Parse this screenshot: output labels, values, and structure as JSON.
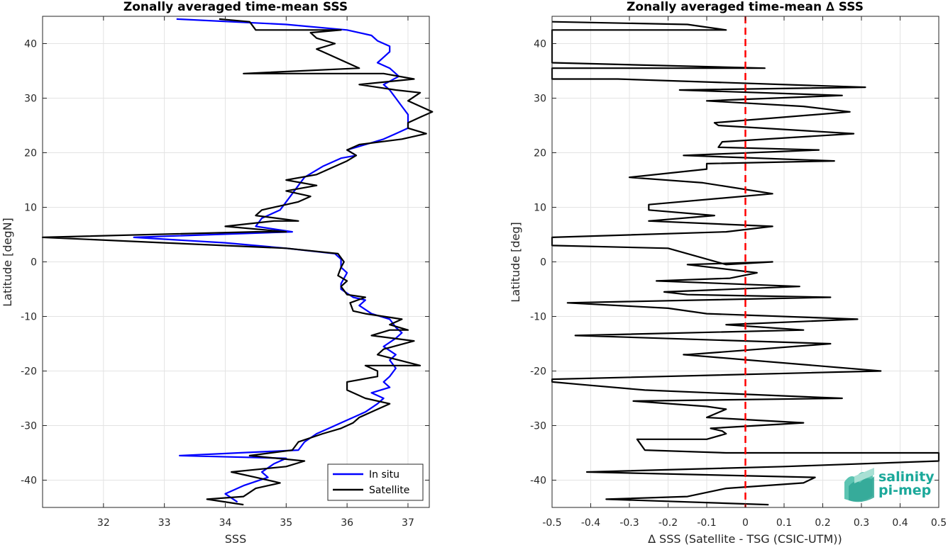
{
  "chart_data": [
    {
      "type": "line",
      "title": "Zonally averaged time-mean SSS",
      "xlabel": "SSS",
      "ylabel": "Latitude [degN]",
      "xlim": [
        31,
        37.35
      ],
      "ylim": [
        -45,
        45
      ],
      "xticks": [
        32,
        33,
        34,
        35,
        36,
        37
      ],
      "yticks": [
        -40,
        -30,
        -20,
        -10,
        0,
        10,
        20,
        30,
        40
      ],
      "grid": true,
      "legend": "bottom-right",
      "series": [
        {
          "name": "In situ",
          "color": "#0000ff",
          "points": [
            [
              34.2,
              -44
            ],
            [
              34.0,
              -42.5
            ],
            [
              34.3,
              -41
            ],
            [
              34.7,
              -39.5
            ],
            [
              34.6,
              -38.5
            ],
            [
              34.8,
              -37
            ],
            [
              35.0,
              -36
            ],
            [
              33.25,
              -35.5
            ],
            [
              35.2,
              -34.5
            ],
            [
              35.3,
              -33
            ],
            [
              35.5,
              -31.5
            ],
            [
              35.7,
              -30.5
            ],
            [
              35.9,
              -29.5
            ],
            [
              36.1,
              -28.5
            ],
            [
              36.3,
              -27.5
            ],
            [
              36.5,
              -26
            ],
            [
              36.6,
              -25
            ],
            [
              36.4,
              -24
            ],
            [
              36.7,
              -23
            ],
            [
              36.6,
              -22
            ],
            [
              36.7,
              -21
            ],
            [
              36.8,
              -19.5
            ],
            [
              36.7,
              -18
            ],
            [
              36.8,
              -17
            ],
            [
              36.6,
              -15.5
            ],
            [
              36.8,
              -14
            ],
            [
              36.9,
              -13
            ],
            [
              36.8,
              -12
            ],
            [
              36.7,
              -10.5
            ],
            [
              36.4,
              -9.5
            ],
            [
              36.2,
              -8
            ],
            [
              36.3,
              -7
            ],
            [
              36.1,
              -6.5
            ],
            [
              35.9,
              -5
            ],
            [
              35.9,
              -4
            ],
            [
              36.0,
              -2
            ],
            [
              35.9,
              -1
            ],
            [
              35.9,
              0.5
            ],
            [
              35.8,
              1.5
            ],
            [
              35.0,
              2.5
            ],
            [
              34.0,
              3.5
            ],
            [
              32.5,
              4.5
            ],
            [
              35.1,
              5.5
            ],
            [
              34.5,
              6.5
            ],
            [
              34.6,
              8
            ],
            [
              34.9,
              9.5
            ],
            [
              35.0,
              11
            ],
            [
              35.1,
              12.5
            ],
            [
              35.2,
              14
            ],
            [
              35.3,
              15.5
            ],
            [
              35.6,
              17.5
            ],
            [
              35.9,
              19
            ],
            [
              36.15,
              19.5
            ],
            [
              36.0,
              20.5
            ],
            [
              36.3,
              21.5
            ],
            [
              36.6,
              22.5
            ],
            [
              36.8,
              23.5
            ],
            [
              37.0,
              24.5
            ],
            [
              37.0,
              26
            ],
            [
              37.0,
              27
            ],
            [
              36.9,
              28.5
            ],
            [
              36.8,
              30
            ],
            [
              36.7,
              31.5
            ],
            [
              36.6,
              32.5
            ],
            [
              36.85,
              34
            ],
            [
              36.7,
              35.5
            ],
            [
              36.5,
              36.5
            ],
            [
              36.6,
              37.5
            ],
            [
              36.7,
              38.5
            ],
            [
              36.7,
              39.5
            ],
            [
              36.5,
              40.5
            ],
            [
              36.4,
              41.5
            ],
            [
              36.0,
              42.5
            ],
            [
              35.0,
              43.5
            ],
            [
              33.2,
              44.5
            ]
          ]
        },
        {
          "name": "Satellite",
          "color": "#000000",
          "points": [
            [
              34.3,
              -44.5
            ],
            [
              33.7,
              -43.5
            ],
            [
              34.3,
              -43
            ],
            [
              34.5,
              -41.5
            ],
            [
              34.9,
              -40.5
            ],
            [
              34.5,
              -39.5
            ],
            [
              34.1,
              -38.5
            ],
            [
              35.0,
              -37.5
            ],
            [
              35.3,
              -36.5
            ],
            [
              34.4,
              -35.5
            ],
            [
              35.1,
              -34.5
            ],
            [
              35.2,
              -33
            ],
            [
              35.6,
              -31.5
            ],
            [
              35.9,
              -30.5
            ],
            [
              36.1,
              -29.5
            ],
            [
              36.2,
              -28.5
            ],
            [
              36.4,
              -27.5
            ],
            [
              36.7,
              -26
            ],
            [
              36.3,
              -25
            ],
            [
              36.0,
              -23.5
            ],
            [
              36.0,
              -22
            ],
            [
              36.5,
              -21
            ],
            [
              36.5,
              -20
            ],
            [
              36.3,
              -19
            ],
            [
              37.2,
              -19
            ],
            [
              36.5,
              -17
            ],
            [
              36.6,
              -16
            ],
            [
              37.1,
              -14.5
            ],
            [
              36.4,
              -13.5
            ],
            [
              36.7,
              -12.5
            ],
            [
              37.0,
              -12.5
            ],
            [
              36.7,
              -11.5
            ],
            [
              36.9,
              -10.5
            ],
            [
              36.3,
              -9.5
            ],
            [
              36.1,
              -9
            ],
            [
              36.05,
              -7.5
            ],
            [
              36.3,
              -6.5
            ],
            [
              36.0,
              -6
            ],
            [
              35.9,
              -4.5
            ],
            [
              36.0,
              -3.5
            ],
            [
              35.85,
              -2.5
            ],
            [
              35.9,
              -1
            ],
            [
              35.95,
              0
            ],
            [
              35.85,
              1.5
            ],
            [
              35.0,
              2.5
            ],
            [
              33.0,
              3.5
            ],
            [
              31.0,
              4.5
            ],
            [
              34.5,
              5.5
            ],
            [
              35.0,
              5.5
            ],
            [
              34.0,
              6.5
            ],
            [
              34.8,
              7.5
            ],
            [
              35.2,
              7.5
            ],
            [
              34.5,
              8.5
            ],
            [
              34.6,
              9.5
            ],
            [
              35.2,
              11
            ],
            [
              35.4,
              12
            ],
            [
              35.0,
              13
            ],
            [
              35.5,
              14
            ],
            [
              35.0,
              15
            ],
            [
              35.5,
              16
            ],
            [
              35.8,
              17.5
            ],
            [
              36.0,
              18.5
            ],
            [
              36.15,
              19.5
            ],
            [
              36.0,
              20.5
            ],
            [
              36.2,
              21.5
            ],
            [
              36.9,
              22.5
            ],
            [
              37.3,
              23.5
            ],
            [
              37.0,
              24.5
            ],
            [
              37.0,
              25.5
            ],
            [
              37.2,
              26.5
            ],
            [
              37.4,
              27.5
            ],
            [
              37.0,
              29.5
            ],
            [
              37.2,
              31
            ],
            [
              36.8,
              31.5
            ],
            [
              36.2,
              32.5
            ],
            [
              37.1,
              33.5
            ],
            [
              36.6,
              34.5
            ],
            [
              34.3,
              34.5
            ],
            [
              36.2,
              35.5
            ],
            [
              35.8,
              37.5
            ],
            [
              35.6,
              38.5
            ],
            [
              35.5,
              39
            ],
            [
              35.8,
              40
            ],
            [
              35.5,
              41
            ],
            [
              35.4,
              42
            ],
            [
              35.9,
              42.5
            ],
            [
              34.5,
              42.5
            ],
            [
              34.4,
              44
            ],
            [
              33.9,
              44.5
            ]
          ]
        }
      ]
    },
    {
      "type": "line",
      "title": "Zonally averaged time-mean ∆ SSS",
      "xlabel": "∆ SSS (Satellite - TSG (CSIC-UTM))",
      "ylabel": "Latitude [deg]",
      "xlim": [
        -0.5,
        0.5
      ],
      "ylim": [
        -45,
        45
      ],
      "xticks": [
        -0.5,
        -0.4,
        -0.3,
        -0.2,
        -0.1,
        0,
        0.1,
        0.2,
        0.3,
        0.4,
        0.5
      ],
      "yticks": [
        -40,
        -30,
        -20,
        -10,
        0,
        10,
        20,
        30,
        40
      ],
      "grid": true,
      "reference_line": {
        "x": 0,
        "color": "#ff0000",
        "style": "dashed"
      },
      "series": [
        {
          "name": "",
          "color": "#000000",
          "points": [
            [
              0.06,
              -44.5
            ],
            [
              -0.36,
              -43.5
            ],
            [
              -0.15,
              -43
            ],
            [
              -0.05,
              -41.5
            ],
            [
              0.15,
              -40.5
            ],
            [
              0.18,
              -39.5
            ],
            [
              -0.41,
              -38.5
            ],
            [
              0.1,
              -37.5
            ],
            [
              0.5,
              -36.5
            ],
            [
              0.5,
              -35
            ],
            [
              -0.05,
              -35
            ],
            [
              -0.26,
              -34.5
            ],
            [
              -0.28,
              -32.5
            ],
            [
              -0.1,
              -32.5
            ],
            [
              -0.05,
              -31.5
            ],
            [
              -0.06,
              -31
            ],
            [
              -0.09,
              -30.5
            ],
            [
              0.15,
              -29.5
            ],
            [
              -0.1,
              -28.5
            ],
            [
              -0.05,
              -27
            ],
            [
              -0.1,
              -26.5
            ],
            [
              -0.29,
              -25.5
            ],
            [
              0.25,
              -25
            ],
            [
              -0.26,
              -23.5
            ],
            [
              -0.42,
              -22.5
            ],
            [
              -0.5,
              -22
            ],
            [
              -0.5,
              -21.5
            ],
            [
              0.35,
              -20
            ],
            [
              -0.16,
              -17
            ],
            [
              -0.15,
              -17
            ],
            [
              0.22,
              -15
            ],
            [
              -0.44,
              -13.5
            ],
            [
              0.15,
              -12.5
            ],
            [
              -0.05,
              -11.5
            ],
            [
              0.29,
              -10.5
            ],
            [
              -0.1,
              -9.5
            ],
            [
              -0.2,
              -8.5
            ],
            [
              -0.46,
              -7.5
            ],
            [
              0.22,
              -6.5
            ],
            [
              -0.15,
              -6
            ],
            [
              -0.21,
              -5.5
            ],
            [
              0.14,
              -4.5
            ],
            [
              -0.23,
              -3.5
            ],
            [
              -0.04,
              -3
            ],
            [
              0.03,
              -2
            ],
            [
              -0.15,
              -0.5
            ],
            [
              0.07,
              0
            ],
            [
              -0.05,
              -0.5
            ],
            [
              -0.2,
              2.5
            ],
            [
              -0.5,
              3
            ],
            [
              -0.5,
              4.5
            ],
            [
              -0.05,
              5.5
            ],
            [
              0.07,
              6.5
            ],
            [
              -0.25,
              7.5
            ],
            [
              -0.08,
              8.5
            ],
            [
              -0.25,
              9.5
            ],
            [
              -0.25,
              10.5
            ],
            [
              0.07,
              12.5
            ],
            [
              -0.11,
              14.5
            ],
            [
              -0.3,
              15.5
            ],
            [
              -0.1,
              17
            ],
            [
              -0.1,
              18
            ],
            [
              0.23,
              18.5
            ],
            [
              -0.16,
              19.5
            ],
            [
              0.19,
              20.5
            ],
            [
              -0.07,
              21
            ],
            [
              -0.06,
              22
            ],
            [
              0.28,
              23.5
            ],
            [
              -0.07,
              25
            ],
            [
              -0.08,
              25.5
            ],
            [
              0.27,
              27.5
            ],
            [
              0.15,
              28.5
            ],
            [
              -0.1,
              29.5
            ],
            [
              0.25,
              30.5
            ],
            [
              -0.17,
              31.5
            ],
            [
              0.31,
              32
            ],
            [
              -0.33,
              33.5
            ],
            [
              -0.5,
              33.5
            ],
            [
              -0.5,
              35.5
            ],
            [
              0.05,
              35.5
            ],
            [
              -0.5,
              36.5
            ],
            [
              -0.5,
              42.5
            ],
            [
              -0.05,
              42.5
            ],
            [
              -0.15,
              43.5
            ],
            [
              -0.5,
              44
            ]
          ]
        }
      ]
    }
  ],
  "logo": {
    "line1": "salinity",
    "line2": "pi-mep",
    "color": "#1ba89a"
  }
}
